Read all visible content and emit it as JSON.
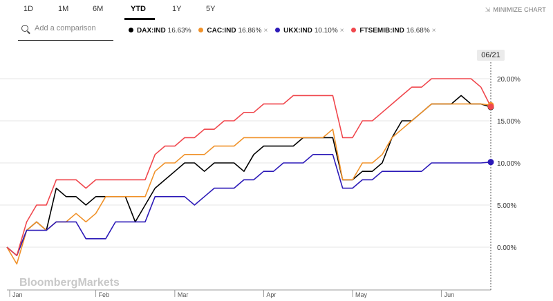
{
  "tabs": [
    {
      "label": "1D",
      "active": false
    },
    {
      "label": "1M",
      "active": false
    },
    {
      "label": "6M",
      "active": false
    },
    {
      "label": "YTD",
      "active": true
    },
    {
      "label": "1Y",
      "active": false
    },
    {
      "label": "5Y",
      "active": false
    }
  ],
  "minimize_label": "MINIMIZE CHART",
  "search": {
    "placeholder": "Add a comparison"
  },
  "legend": [
    {
      "name": "DAX:IND",
      "value": "16.63%",
      "color": "#000000",
      "removable": false
    },
    {
      "name": "CAC:IND",
      "value": "16.86%",
      "color": "#f0922a",
      "removable": true
    },
    {
      "name": "UKX:IND",
      "value": "10.10%",
      "color": "#2c1ab8",
      "removable": true
    },
    {
      "name": "FTSEMIB:IND",
      "value": "16.68%",
      "color": "#f0474d",
      "removable": true
    }
  ],
  "date_badge": "06/21",
  "watermark": "BloombergMarkets",
  "chart_data": {
    "type": "line",
    "x": [
      "01/01",
      "01/04",
      "01/08",
      "01/11",
      "01/15",
      "01/18",
      "01/22",
      "01/25",
      "01/29",
      "02/01",
      "02/05",
      "02/08",
      "02/12",
      "02/15",
      "02/19",
      "02/22",
      "02/26",
      "03/01",
      "03/05",
      "03/08",
      "03/12",
      "03/15",
      "03/19",
      "03/22",
      "03/26",
      "03/29",
      "04/02",
      "04/05",
      "04/09",
      "04/12",
      "04/16",
      "04/19",
      "04/23",
      "04/26",
      "04/30",
      "05/03",
      "05/07",
      "05/10",
      "05/14",
      "05/17",
      "05/21",
      "05/24",
      "05/28",
      "05/31",
      "06/04",
      "06/07",
      "06/11",
      "06/14",
      "06/18",
      "06/21"
    ],
    "series": [
      {
        "name": "DAX:IND",
        "color": "#000000",
        "values": [
          0,
          -1,
          2,
          3,
          2,
          7,
          6,
          6,
          5,
          6,
          6,
          6,
          6,
          3,
          5,
          7,
          8,
          9,
          10,
          10,
          9,
          10,
          10,
          10,
          9,
          11,
          12,
          12,
          12,
          12,
          13,
          13,
          13,
          13,
          8,
          8,
          9,
          9,
          10,
          13,
          15,
          15,
          16,
          17,
          17,
          17,
          18,
          17,
          17,
          16.63
        ]
      },
      {
        "name": "CAC:IND",
        "color": "#f0922a",
        "values": [
          0,
          -2,
          2,
          3,
          2,
          3,
          3,
          4,
          3,
          4,
          6,
          6,
          6,
          6,
          6,
          9,
          10,
          10,
          11,
          11,
          11,
          12,
          12,
          12,
          13,
          13,
          13,
          13,
          13,
          13,
          13,
          13,
          13,
          14,
          8,
          8,
          10,
          10,
          11,
          13,
          14,
          15,
          16,
          17,
          17,
          17,
          17,
          17,
          17,
          16.86
        ]
      },
      {
        "name": "UKX:IND",
        "color": "#2c1ab8",
        "values": [
          0,
          -1,
          2,
          2,
          2,
          3,
          3,
          3,
          1,
          1,
          1,
          3,
          3,
          3,
          3,
          6,
          6,
          6,
          6,
          5,
          6,
          7,
          7,
          7,
          8,
          8,
          9,
          9,
          10,
          10,
          10,
          11,
          11,
          11,
          7,
          7,
          8,
          8,
          9,
          9,
          9,
          9,
          9,
          10,
          10,
          10,
          10,
          10,
          10,
          10.1
        ]
      },
      {
        "name": "FTSEMIB:IND",
        "color": "#f0474d",
        "values": [
          0,
          -1,
          3,
          5,
          5,
          8,
          8,
          8,
          7,
          8,
          8,
          8,
          8,
          8,
          8,
          11,
          12,
          12,
          13,
          13,
          14,
          14,
          15,
          15,
          16,
          16,
          17,
          17,
          17,
          18,
          18,
          18,
          18,
          18,
          13,
          13,
          15,
          15,
          16,
          17,
          18,
          19,
          19,
          20,
          20,
          20,
          20,
          20,
          19,
          16.68
        ]
      }
    ],
    "yticks": [
      "20.00%",
      "15.00%",
      "10.00%",
      "5.00%",
      "0.00%"
    ],
    "xticks": [
      "Jan",
      "Feb",
      "Mar",
      "Apr",
      "May",
      "Jun"
    ],
    "ylim": [
      -5,
      22
    ]
  }
}
